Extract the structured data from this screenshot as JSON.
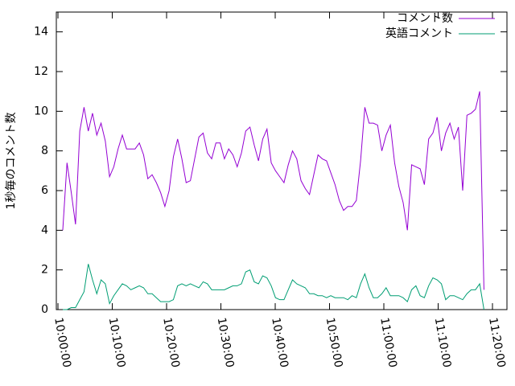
{
  "chart_data": {
    "type": "line",
    "ylabel": "1秒毎のコメント数",
    "x": [
      36053,
      36100,
      36147,
      36194,
      36241,
      36288,
      36335,
      36382,
      36429,
      36476,
      36523,
      36570,
      36617,
      36664,
      36711,
      36758,
      36805,
      36852,
      36899,
      36946,
      36993,
      37040,
      37087,
      37134,
      37181,
      37228,
      37275,
      37322,
      37369,
      37416,
      37463,
      37510,
      37557,
      37604,
      37651,
      37698,
      37745,
      37792,
      37839,
      37886,
      37933,
      37980,
      38027,
      38074,
      38121,
      38168,
      38215,
      38262,
      38309,
      38356,
      38403,
      38450,
      38497,
      38544,
      38591,
      38638,
      38685,
      38732,
      38779,
      38826,
      38873,
      38920,
      38967,
      39014,
      39061,
      39108,
      39155,
      39202,
      39249,
      39296,
      39343,
      39390,
      39437,
      39484,
      39531,
      39578,
      39625,
      39672,
      39719,
      39766,
      39813,
      39860,
      39907,
      39954,
      40001,
      40048,
      40095,
      40142,
      40189,
      40236,
      40283,
      40330,
      40377,
      40424,
      40471,
      40518,
      40565,
      40612,
      40659,
      40706
    ],
    "series": [
      {
        "name": "コメント数",
        "color": "#9400d3",
        "values": [
          4.0,
          7.4,
          5.9,
          4.3,
          9.0,
          10.2,
          9.0,
          9.9,
          8.8,
          9.4,
          8.5,
          6.7,
          7.2,
          8.1,
          8.8,
          8.1,
          8.1,
          8.1,
          8.4,
          7.8,
          6.6,
          6.8,
          6.4,
          5.9,
          5.2,
          6.0,
          7.7,
          8.6,
          7.6,
          6.4,
          6.5,
          7.6,
          8.7,
          8.9,
          7.9,
          7.6,
          8.4,
          8.4,
          7.6,
          8.1,
          7.8,
          7.2,
          7.9,
          9.0,
          9.2,
          8.3,
          7.5,
          8.6,
          9.1,
          7.4,
          7.0,
          6.7,
          6.4,
          7.3,
          8.0,
          7.6,
          6.5,
          6.1,
          5.8,
          6.8,
          7.8,
          7.6,
          7.5,
          6.9,
          6.3,
          5.5,
          5.0,
          5.2,
          5.2,
          5.5,
          7.5,
          10.2,
          9.4,
          9.4,
          9.3,
          8.0,
          8.8,
          9.3,
          7.4,
          6.2,
          5.4,
          4.0,
          7.3,
          7.2,
          7.1,
          6.3,
          8.6,
          8.9,
          9.7,
          8.0,
          8.9,
          9.4,
          8.6,
          9.2,
          6.0,
          9.8,
          9.9,
          10.1,
          11.0,
          1.0
        ]
      },
      {
        "name": "英語コメント",
        "color": "#009e73",
        "values": [
          0.0,
          0.0,
          0.1,
          0.1,
          0.5,
          0.9,
          2.3,
          1.5,
          0.8,
          1.5,
          1.3,
          0.3,
          0.7,
          1.0,
          1.3,
          1.2,
          1.0,
          1.1,
          1.2,
          1.1,
          0.8,
          0.8,
          0.6,
          0.4,
          0.4,
          0.4,
          0.5,
          1.2,
          1.3,
          1.2,
          1.3,
          1.2,
          1.1,
          1.4,
          1.3,
          1.0,
          1.0,
          1.0,
          1.0,
          1.1,
          1.2,
          1.2,
          1.3,
          1.9,
          2.0,
          1.4,
          1.3,
          1.7,
          1.6,
          1.2,
          0.6,
          0.5,
          0.5,
          1.0,
          1.5,
          1.3,
          1.2,
          1.1,
          0.8,
          0.8,
          0.7,
          0.7,
          0.6,
          0.7,
          0.6,
          0.6,
          0.6,
          0.5,
          0.7,
          0.6,
          1.3,
          1.8,
          1.1,
          0.6,
          0.6,
          0.8,
          1.1,
          0.7,
          0.7,
          0.7,
          0.6,
          0.4,
          1.0,
          1.2,
          0.7,
          0.6,
          1.2,
          1.6,
          1.5,
          1.3,
          0.5,
          0.7,
          0.7,
          0.6,
          0.5,
          0.8,
          1.0,
          1.0,
          1.3,
          0.0
        ]
      }
    ],
    "xlim": [
      35982,
      40960
    ],
    "xticks": [
      {
        "value": 36000,
        "label": "10:00:00"
      },
      {
        "value": 36600,
        "label": "10:10:00"
      },
      {
        "value": 37200,
        "label": "10:20:00"
      },
      {
        "value": 37800,
        "label": "10:30:00"
      },
      {
        "value": 38400,
        "label": "10:40:00"
      },
      {
        "value": 39000,
        "label": "10:50:00"
      },
      {
        "value": 39600,
        "label": "11:00:00"
      },
      {
        "value": 40200,
        "label": "11:10:00"
      },
      {
        "value": 40800,
        "label": "11:20:00"
      }
    ],
    "ylim": [
      0,
      15
    ],
    "yticks": [
      0,
      2,
      4,
      6,
      8,
      10,
      12,
      14
    ],
    "legend": "top-right",
    "grid": false
  }
}
